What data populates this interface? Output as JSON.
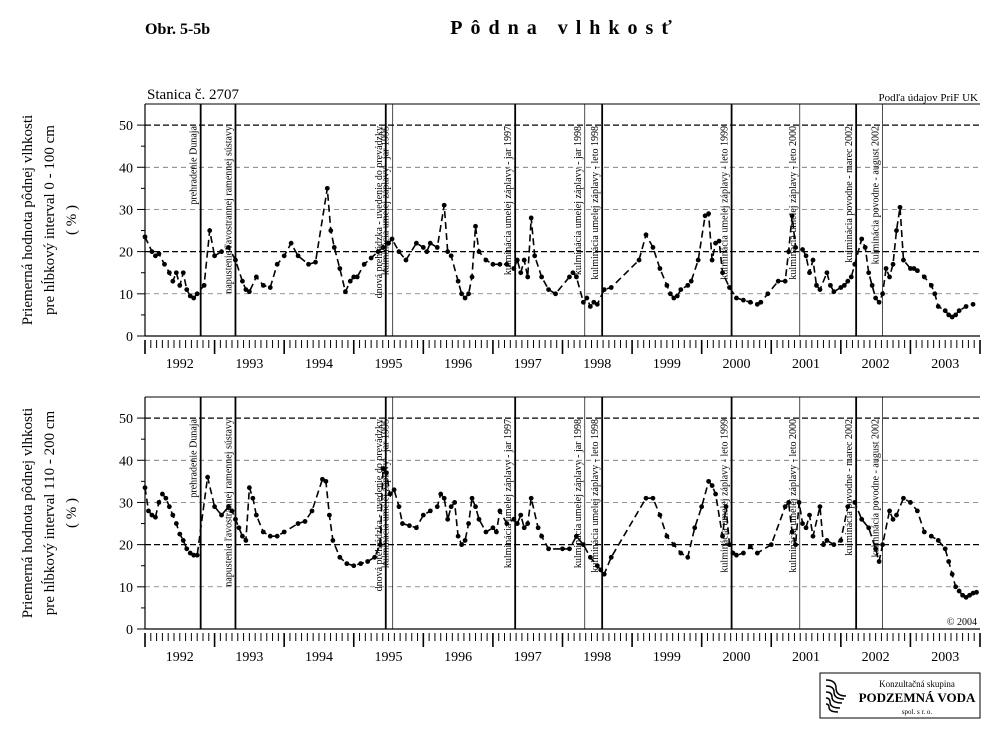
{
  "header": {
    "figure": "Obr. 5-5b",
    "title": "Pôdna vlhkosť"
  },
  "station": "Stanica č. 2707",
  "source": "Podľa údajov PriF UK",
  "copyright": "© 2004",
  "logo": {
    "line1": "Konzultačná skupina",
    "line2": "PODZEMNÁ VODA",
    "line3": "spol. s r. o."
  },
  "events": [
    {
      "x": 1992.8,
      "label": "prehradenie Dunaja",
      "weight": "thick"
    },
    {
      "x": 1993.3,
      "label": "napustenie ľavostrannej ramennej sústavy",
      "weight": "thick"
    },
    {
      "x": 1995.46,
      "label": "dnová prehrádzka - uvedenie do prevádzky",
      "weight": "thick"
    },
    {
      "x": 1995.56,
      "label": "kulminácia umelej záplavy - jar 1995",
      "weight": "thin"
    },
    {
      "x": 1997.32,
      "label": "kulminácia umelej záplavy - jar 1997",
      "weight": "thick"
    },
    {
      "x": 1998.32,
      "label": "kulminácia umelej záplavy - jar 1998",
      "weight": "thin"
    },
    {
      "x": 1998.57,
      "label": "kulminácia umelej záplavy - leto 1998",
      "weight": "thick"
    },
    {
      "x": 2000.43,
      "label": "kulminácia umelej záplavy - leto 1999",
      "weight": "thick"
    },
    {
      "x": 2001.41,
      "label": "kulminácia umelej záplavy - leto 2000",
      "weight": "thin"
    },
    {
      "x": 2002.22,
      "label": "kulminácia povodne - marec 2002",
      "weight": "thick"
    },
    {
      "x": 2002.6,
      "label": "kulminácia povodne - august 2002",
      "weight": "thin"
    }
  ],
  "chart_data": [
    {
      "type": "line",
      "color": "#000000",
      "ylabel": [
        "Priemerná hodnota pôdnej vlhkosti",
        "pre hĺbkový interval 0 - 100 cm",
        "( % )"
      ],
      "xlim": [
        1992,
        2004
      ],
      "ylim": [
        0,
        55
      ],
      "yticks": [
        0,
        10,
        20,
        30,
        40,
        50
      ],
      "grid": true,
      "bold_grid": [
        20,
        50
      ],
      "xticks": [
        {
          "value": 1992.5,
          "label": "1992"
        },
        {
          "value": 1993.5,
          "label": "1993"
        },
        {
          "value": 1994.5,
          "label": "1994"
        },
        {
          "value": 1995.5,
          "label": "1995"
        },
        {
          "value": 1996.5,
          "label": "1996"
        },
        {
          "value": 1997.5,
          "label": "1997"
        },
        {
          "value": 1998.5,
          "label": "1998"
        },
        {
          "value": 1999.5,
          "label": "1999"
        },
        {
          "value": 2000.5,
          "label": "2000"
        },
        {
          "value": 2001.5,
          "label": "2001"
        },
        {
          "value": 2002.5,
          "label": "2002"
        },
        {
          "value": 2003.5,
          "label": "2003"
        }
      ],
      "x": [
        1992.0,
        1992.1,
        1992.15,
        1992.2,
        1992.28,
        1992.35,
        1992.4,
        1992.45,
        1992.5,
        1992.55,
        1992.6,
        1992.65,
        1992.7,
        1992.75,
        1992.85,
        1992.93,
        1993.0,
        1993.1,
        1993.2,
        1993.3,
        1993.4,
        1993.45,
        1993.5,
        1993.6,
        1993.7,
        1993.8,
        1993.9,
        1994.0,
        1994.1,
        1994.2,
        1994.35,
        1994.45,
        1994.62,
        1994.67,
        1994.72,
        1994.8,
        1994.88,
        1994.95,
        1995.0,
        1995.05,
        1995.15,
        1995.25,
        1995.35,
        1995.42,
        1995.5,
        1995.55,
        1995.65,
        1995.75,
        1995.9,
        1996.0,
        1996.05,
        1996.1,
        1996.2,
        1996.3,
        1996.35,
        1996.4,
        1996.5,
        1996.55,
        1996.6,
        1996.65,
        1996.7,
        1996.75,
        1996.8,
        1996.9,
        1997.0,
        1997.1,
        1997.2,
        1997.3,
        1997.35,
        1997.4,
        1997.45,
        1997.5,
        1997.55,
        1997.6,
        1997.7,
        1997.8,
        1997.9,
        1998.1,
        1998.15,
        1998.2,
        1998.3,
        1998.35,
        1998.4,
        1998.45,
        1998.5,
        1998.6,
        1998.7,
        1999.1,
        1999.2,
        1999.3,
        1999.4,
        1999.5,
        1999.55,
        1999.6,
        1999.65,
        1999.7,
        1999.8,
        1999.85,
        1999.95,
        2000.05,
        2000.1,
        2000.15,
        2000.2,
        2000.25,
        2000.3,
        2000.4,
        2000.5,
        2000.6,
        2000.7,
        2000.8,
        2000.85,
        2000.95,
        2001.1,
        2001.2,
        2001.25,
        2001.3,
        2001.35,
        2001.45,
        2001.5,
        2001.55,
        2001.6,
        2001.65,
        2001.7,
        2001.8,
        2001.85,
        2001.9,
        2002.0,
        2002.05,
        2002.1,
        2002.15,
        2002.2,
        2002.3,
        2002.35,
        2002.4,
        2002.45,
        2002.5,
        2002.55,
        2002.6,
        2002.65,
        2002.7,
        2002.75,
        2002.8,
        2002.85,
        2002.9,
        2003.0,
        2003.05,
        2003.1,
        2003.2,
        2003.3,
        2003.35,
        2003.4,
        2003.5,
        2003.55,
        2003.6,
        2003.65,
        2003.7,
        2003.8,
        2003.9
      ],
      "values": [
        23.5,
        20,
        19,
        19.5,
        17,
        15,
        13,
        15,
        12,
        15,
        11,
        9.5,
        9,
        10,
        12,
        25,
        19,
        20,
        21,
        18,
        13,
        11,
        10.5,
        14,
        12,
        11.5,
        17,
        19,
        22,
        19,
        17,
        17.5,
        35,
        25,
        21,
        16,
        10.5,
        13,
        14,
        14,
        17,
        18.5,
        20,
        21,
        22,
        23,
        20,
        18,
        22,
        21,
        20,
        22,
        21,
        31,
        20,
        19,
        13,
        10,
        9,
        10,
        14,
        26,
        20,
        18,
        17,
        17,
        17,
        16,
        18,
        15,
        18,
        14,
        28,
        19,
        14,
        11,
        10,
        14,
        15,
        14,
        8,
        9,
        7,
        8,
        7.5,
        11,
        11.5,
        18,
        24,
        21,
        16,
        12,
        10,
        9,
        9.5,
        11,
        12,
        13,
        18,
        28.5,
        29,
        18,
        22,
        22.5,
        15,
        11.5,
        9,
        8.5,
        8,
        7.5,
        8,
        10,
        13,
        13,
        20,
        28.5,
        21,
        20.5,
        19,
        15,
        18,
        12,
        11,
        15,
        12,
        10.5,
        11.5,
        12,
        13,
        14,
        17,
        23,
        21,
        15,
        12,
        9,
        8,
        10,
        16,
        14,
        17,
        25,
        30.5,
        18,
        16,
        16,
        15.5,
        14,
        12,
        10,
        7,
        6,
        5,
        4.5,
        5,
        6,
        7,
        7.5
      ]
    },
    {
      "type": "line",
      "color": "#000000",
      "ylabel": [
        "Priemerná hodnota pôdnej vlhkosti",
        "pre hĺbkový interval 110 - 200 cm",
        "( % )"
      ],
      "xlim": [
        1992,
        2004
      ],
      "ylim": [
        0,
        55
      ],
      "yticks": [
        0,
        10,
        20,
        30,
        40,
        50
      ],
      "grid": true,
      "bold_grid": [
        20,
        50
      ],
      "xticks": [
        {
          "value": 1992.5,
          "label": "1992"
        },
        {
          "value": 1993.5,
          "label": "1993"
        },
        {
          "value": 1994.5,
          "label": "1994"
        },
        {
          "value": 1995.5,
          "label": "1995"
        },
        {
          "value": 1996.5,
          "label": "1996"
        },
        {
          "value": 1997.5,
          "label": "1997"
        },
        {
          "value": 1998.5,
          "label": "1998"
        },
        {
          "value": 1999.5,
          "label": "1999"
        },
        {
          "value": 2000.5,
          "label": "2000"
        },
        {
          "value": 2001.5,
          "label": "2001"
        },
        {
          "value": 2002.5,
          "label": "2002"
        },
        {
          "value": 2003.5,
          "label": "2003"
        }
      ],
      "x": [
        1992.0,
        1992.05,
        1992.1,
        1992.15,
        1992.2,
        1992.25,
        1992.3,
        1992.35,
        1992.4,
        1992.45,
        1992.5,
        1992.55,
        1992.6,
        1992.65,
        1992.7,
        1992.75,
        1992.9,
        1993.0,
        1993.1,
        1993.2,
        1993.25,
        1993.3,
        1993.35,
        1993.4,
        1993.45,
        1993.5,
        1993.55,
        1993.6,
        1993.7,
        1993.8,
        1993.9,
        1994.0,
        1994.2,
        1994.3,
        1994.4,
        1994.55,
        1994.6,
        1994.65,
        1994.7,
        1994.8,
        1994.9,
        1995.0,
        1995.1,
        1995.2,
        1995.3,
        1995.38,
        1995.42,
        1995.47,
        1995.52,
        1995.58,
        1995.65,
        1995.7,
        1995.8,
        1995.9,
        1996.0,
        1996.1,
        1996.2,
        1996.25,
        1996.3,
        1996.35,
        1996.4,
        1996.45,
        1996.5,
        1996.55,
        1996.6,
        1996.65,
        1996.7,
        1996.75,
        1996.8,
        1996.9,
        1997.0,
        1997.05,
        1997.1,
        1997.2,
        1997.3,
        1997.35,
        1997.4,
        1997.45,
        1997.5,
        1997.55,
        1997.65,
        1997.7,
        1997.8,
        1998.0,
        1998.1,
        1998.2,
        1998.3,
        1998.4,
        1998.5,
        1998.55,
        1998.6,
        1998.7,
        1999.2,
        1999.3,
        1999.4,
        1999.5,
        1999.6,
        1999.7,
        1999.8,
        1999.9,
        2000.0,
        2000.1,
        2000.15,
        2000.2,
        2000.3,
        2000.35,
        2000.4,
        2000.45,
        2000.5,
        2000.6,
        2000.7,
        2000.8,
        2001.0,
        2001.2,
        2001.25,
        2001.3,
        2001.35,
        2001.4,
        2001.45,
        2001.5,
        2001.55,
        2001.6,
        2001.7,
        2001.75,
        2001.8,
        2001.9,
        2002.0,
        2002.1,
        2002.2,
        2002.3,
        2002.4,
        2002.5,
        2002.55,
        2002.6,
        2002.7,
        2002.75,
        2002.8,
        2002.9,
        2003.0,
        2003.1,
        2003.2,
        2003.3,
        2003.4,
        2003.5,
        2003.55,
        2003.6,
        2003.65,
        2003.7,
        2003.75,
        2003.8,
        2003.85,
        2003.9,
        2003.95
      ],
      "values": [
        33.5,
        28,
        27,
        26.5,
        30,
        32,
        31,
        29,
        27,
        25,
        22.5,
        21,
        19,
        18,
        17.5,
        17.5,
        36,
        29,
        27,
        29,
        28,
        26,
        24,
        22,
        21,
        33.5,
        31,
        27,
        23,
        22,
        22,
        23,
        25,
        25.5,
        28,
        35.5,
        35,
        27,
        21,
        17,
        15.5,
        15,
        15.5,
        16,
        17,
        20,
        38,
        37,
        32,
        33,
        29,
        25,
        24.5,
        24,
        27,
        28,
        29,
        32,
        31,
        26,
        29,
        30,
        22,
        20,
        21,
        25,
        31,
        29,
        26,
        23,
        24,
        23,
        28,
        25,
        26,
        25,
        27,
        24,
        25,
        31,
        24,
        22,
        19,
        19,
        19,
        22,
        20,
        17,
        15,
        14,
        13,
        17,
        31,
        31,
        27,
        22,
        20,
        18,
        17,
        24,
        29,
        35,
        34,
        32,
        22,
        29,
        20,
        18,
        17.5,
        18,
        19.5,
        18,
        20,
        29,
        30,
        23,
        20,
        30,
        25,
        24,
        27,
        22,
        29,
        20,
        21,
        20,
        21,
        29,
        30,
        26,
        24,
        19,
        16,
        20,
        28,
        26,
        27,
        31,
        30,
        28,
        23,
        22,
        21,
        19,
        16,
        13,
        10,
        9,
        8,
        7.5,
        8,
        8.5,
        8.7
      ]
    }
  ]
}
